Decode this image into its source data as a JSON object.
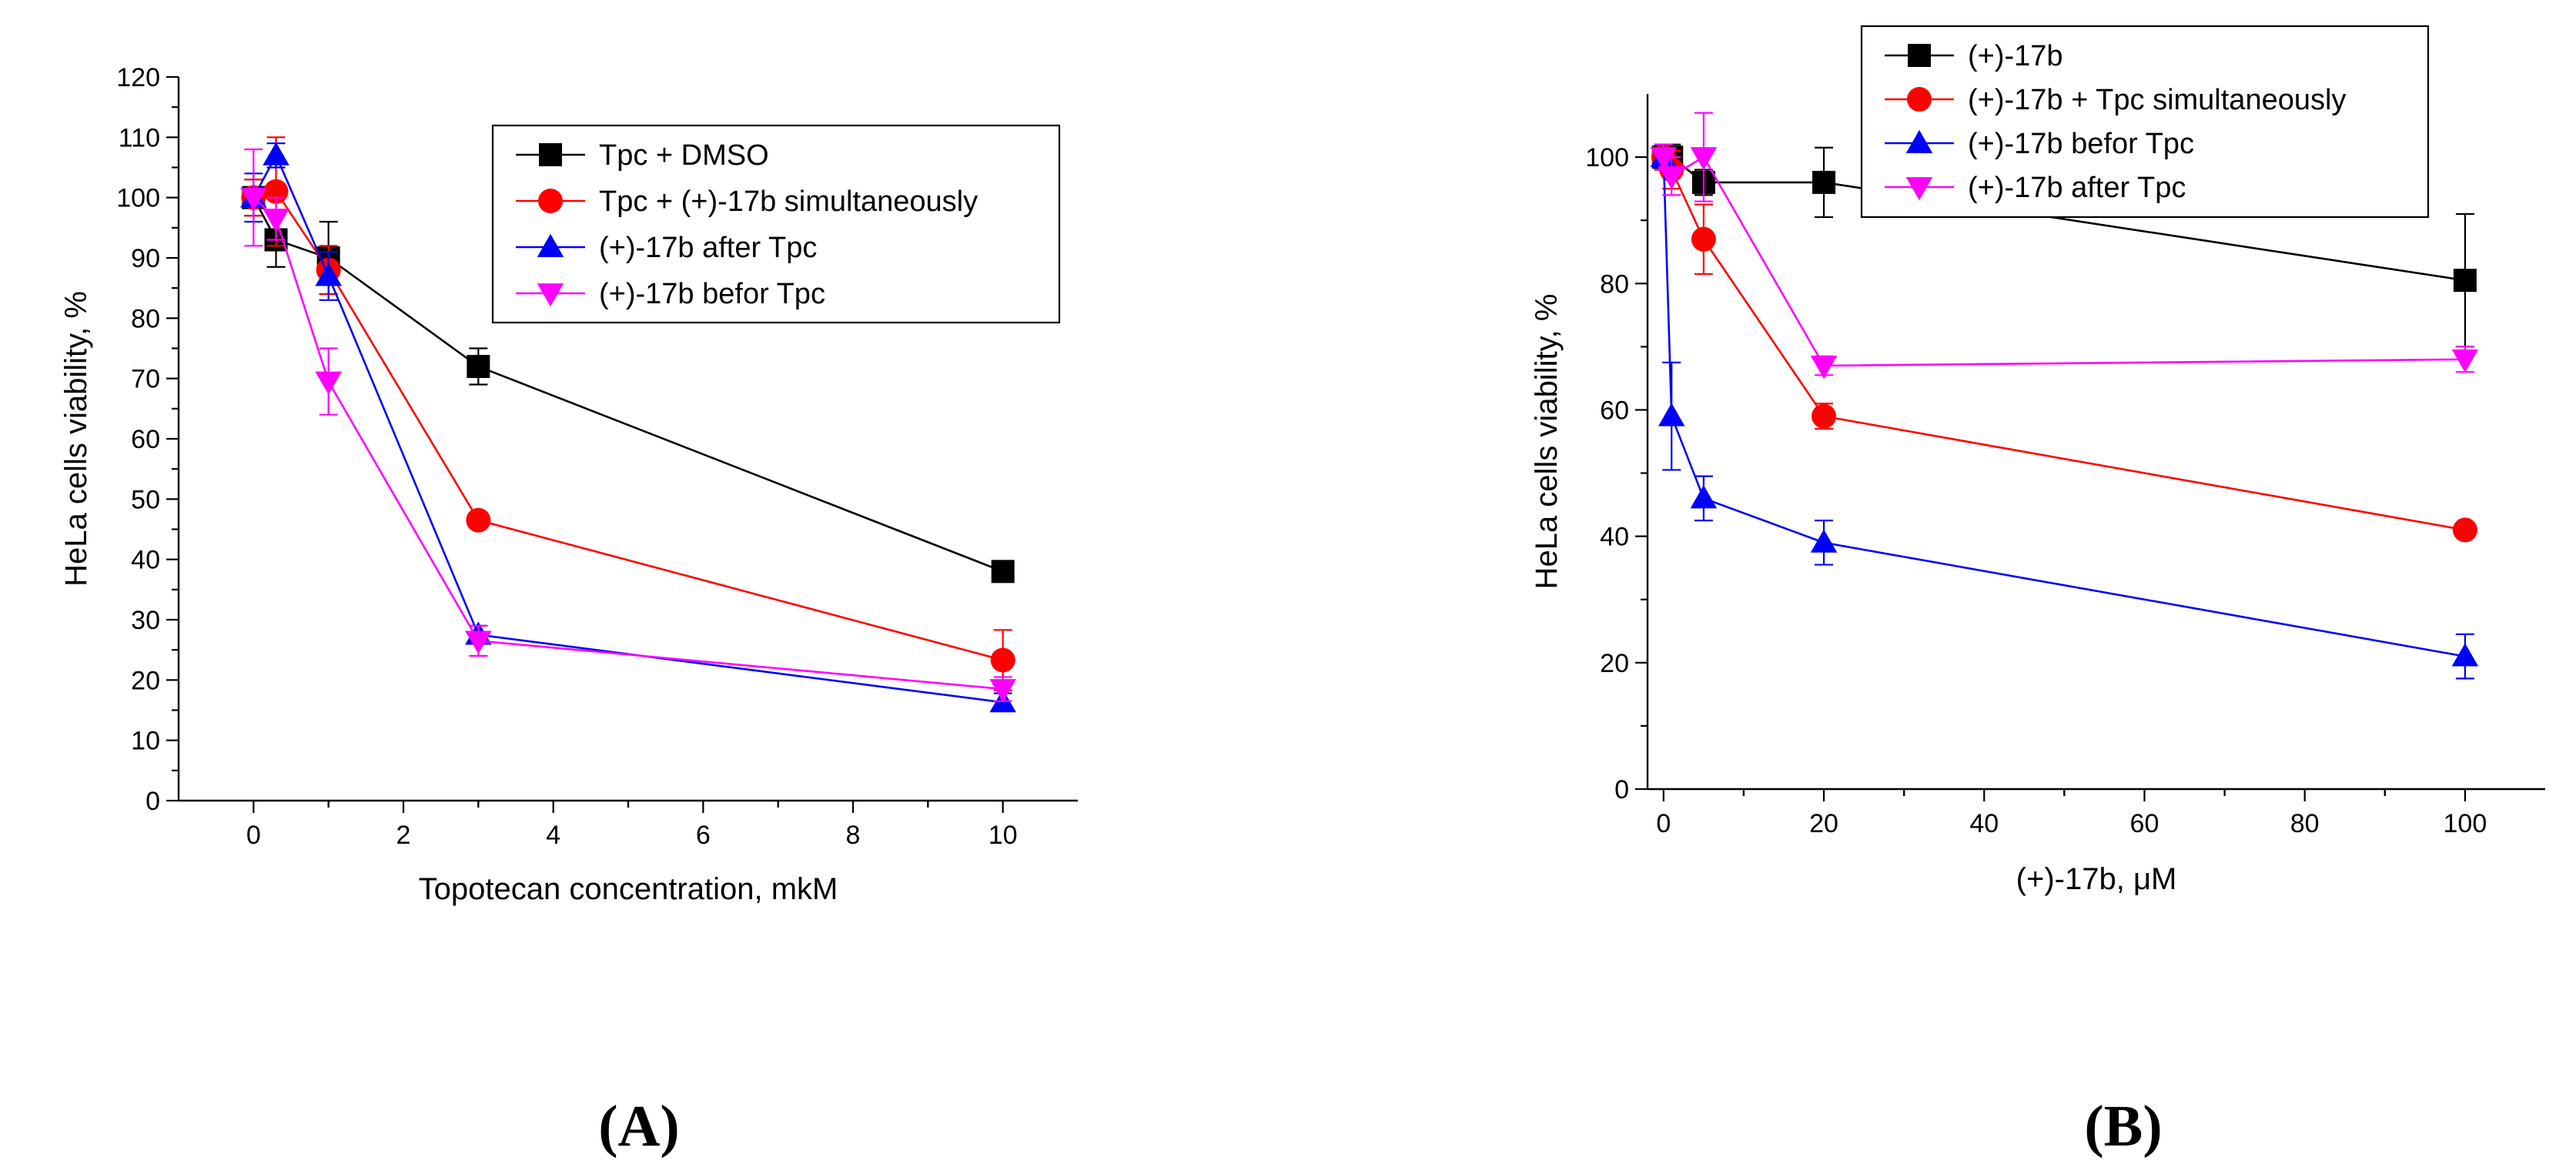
{
  "chart_data": [
    {
      "type": "line",
      "panel_label": "(A)",
      "xlabel": "Topotecan concentration, mkM",
      "ylabel": "HeLa cells viability, %",
      "xlim": [
        -1,
        11
      ],
      "ylim": [
        0,
        120
      ],
      "xticks": [
        0,
        2,
        4,
        6,
        8,
        10
      ],
      "yticks": [
        0,
        10,
        20,
        30,
        40,
        50,
        60,
        70,
        80,
        90,
        100,
        110,
        120
      ],
      "grid": false,
      "legend_placement": "top-right",
      "series": [
        {
          "name": "Tpc + DMSO",
          "color": "#000000",
          "marker": "square",
          "x": [
            0,
            0.3,
            1,
            3,
            10
          ],
          "y": [
            100,
            93,
            90,
            72,
            38
          ],
          "err": [
            3,
            4.5,
            6,
            3,
            1
          ]
        },
        {
          "name": "Tpc + (+)-17b simultaneously",
          "color": "#ff0000",
          "marker": "circle",
          "x": [
            0,
            0.3,
            1,
            3,
            10
          ],
          "y": [
            100,
            101,
            88,
            46.5,
            23.3
          ],
          "err": [
            3,
            9,
            4,
            1,
            5
          ]
        },
        {
          "name": "(+)-17b after Tpc",
          "color": "#0000ff",
          "marker": "triangle-up",
          "x": [
            0,
            0.3,
            1,
            3,
            10
          ],
          "y": [
            100,
            107,
            87,
            27.5,
            16.3
          ],
          "err": [
            4,
            2,
            4,
            1.5,
            1.5
          ]
        },
        {
          "name": "(+)-17b befor Tpc",
          "color": "#ff00ff",
          "marker": "triangle-down",
          "x": [
            0,
            0.3,
            1,
            3,
            10
          ],
          "y": [
            100,
            96.5,
            69.5,
            26.5,
            18.5
          ],
          "err": [
            8,
            3.5,
            5.5,
            2.5,
            2
          ]
        }
      ]
    },
    {
      "type": "line",
      "panel_label": "(B)",
      "xlabel": "(+)-17b, μM",
      "ylabel": "HeLa cells viability, %",
      "xlim": [
        -2,
        110
      ],
      "ylim": [
        0,
        110
      ],
      "xticks": [
        0,
        20,
        40,
        60,
        80,
        100
      ],
      "yticks": [
        0,
        20,
        40,
        60,
        80,
        100
      ],
      "grid": false,
      "legend_placement": "top",
      "series": [
        {
          "name": "(+)-17b",
          "color": "#000000",
          "marker": "square",
          "x": [
            0,
            1,
            5,
            20,
            100
          ],
          "y": [
            100,
            100,
            96,
            96,
            80.5
          ],
          "err": [
            2,
            2,
            2,
            5.5,
            10.5
          ]
        },
        {
          "name": "(+)-17b + Tpc simultaneously",
          "color": "#ff0000",
          "marker": "circle",
          "x": [
            0,
            1,
            5,
            20,
            100
          ],
          "y": [
            100,
            98,
            87,
            59,
            41
          ],
          "err": [
            2,
            3,
            5.5,
            2,
            1
          ]
        },
        {
          "name": "(+)-17b befor Tpc",
          "color": "#0000ff",
          "marker": "triangle-up",
          "x": [
            0,
            1,
            5,
            20,
            100
          ],
          "y": [
            100,
            59,
            46,
            39,
            21
          ],
          "err": [
            2,
            8.5,
            3.5,
            3.5,
            3.5
          ]
        },
        {
          "name": "(+)-17b after  Tpc",
          "color": "#ff00ff",
          "marker": "triangle-down",
          "x": [
            0,
            1,
            5,
            20,
            100
          ],
          "y": [
            100,
            97,
            100,
            67,
            68
          ],
          "err": [
            2,
            3,
            7,
            1.5,
            2
          ]
        }
      ]
    }
  ]
}
